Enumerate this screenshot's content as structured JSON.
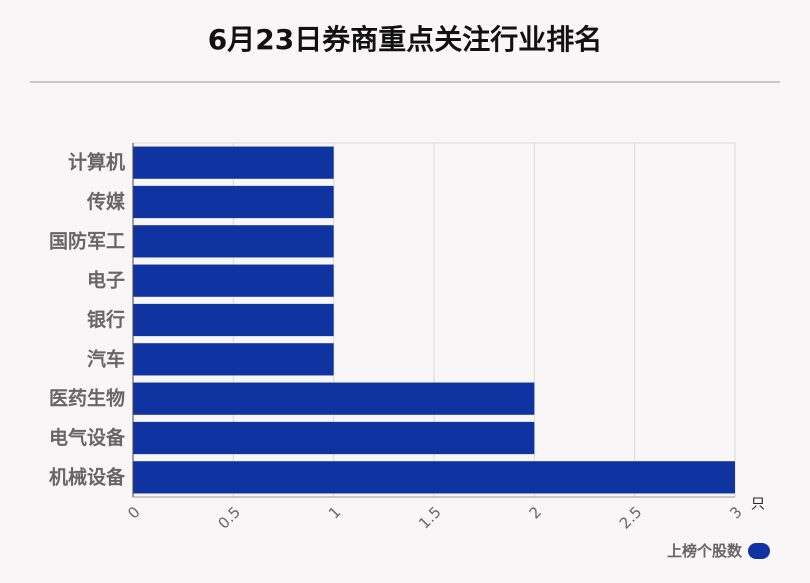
{
  "title": "6月23日券商重点关注行业排名",
  "colors": {
    "bar": "#0f33a0",
    "grid": "#d9d9d9",
    "axis_text": "#666666"
  },
  "chart_data": {
    "type": "bar",
    "orientation": "horizontal",
    "categories": [
      "计算机",
      "传媒",
      "国防军工",
      "电子",
      "银行",
      "汽车",
      "医药生物",
      "电气设备",
      "机械设备"
    ],
    "series": [
      {
        "name": "上榜个股数",
        "values": [
          1,
          1,
          1,
          1,
          1,
          1,
          2,
          2,
          3
        ]
      }
    ],
    "xlim": [
      0,
      3
    ],
    "xticks": [
      "0",
      "0.5",
      "1",
      "1.5",
      "2",
      "2.5",
      "3"
    ],
    "xunit": "只",
    "grid": true,
    "legend_position": "bottom-right"
  }
}
